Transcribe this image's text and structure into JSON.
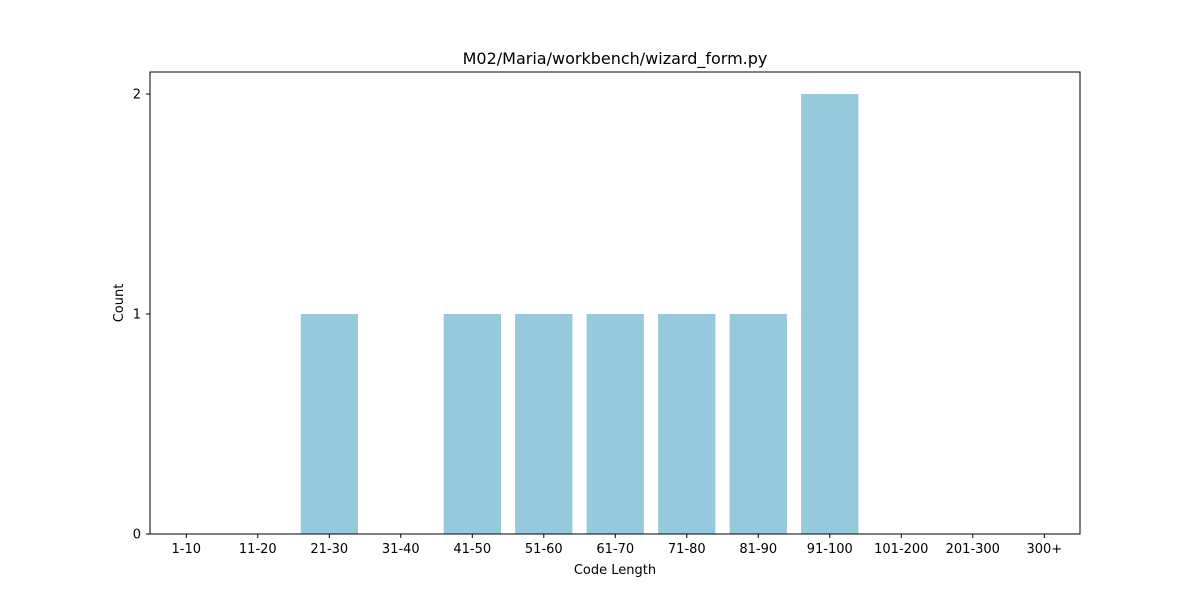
{
  "chart_data": {
    "type": "bar",
    "title": "M02/Maria/workbench/wizard_form.py",
    "xlabel": "Code Length",
    "ylabel": "Count",
    "categories": [
      "1-10",
      "11-20",
      "21-30",
      "31-40",
      "41-50",
      "51-60",
      "61-70",
      "71-80",
      "81-90",
      "91-100",
      "101-200",
      "201-300",
      "300+"
    ],
    "values": [
      0,
      0,
      1,
      0,
      1,
      1,
      1,
      1,
      1,
      2,
      0,
      0,
      0
    ],
    "ylim": [
      0,
      2.1
    ],
    "yticks": [
      0,
      1,
      2
    ],
    "bar_color": "#97c9dd",
    "grid": false,
    "legend": "none"
  }
}
